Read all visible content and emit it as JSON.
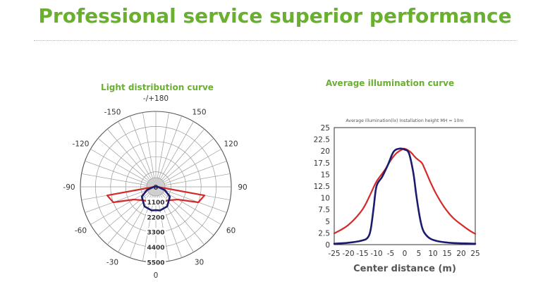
{
  "header": {
    "title": "Professional service superior performance"
  },
  "chart_data": [
    {
      "type": "polar",
      "title": "Light distribution curve",
      "angle_labels": [
        {
          "text": "-/+180",
          "deg": 180
        },
        {
          "text": "150",
          "deg": 150
        },
        {
          "text": "120",
          "deg": 120
        },
        {
          "text": "90",
          "deg": 90
        },
        {
          "text": "60",
          "deg": 60
        },
        {
          "text": "30",
          "deg": 30
        },
        {
          "text": "0",
          "deg": 0
        },
        {
          "text": "-30",
          "deg": -30
        },
        {
          "text": "-60",
          "deg": -60
        },
        {
          "text": "-90",
          "deg": -90
        },
        {
          "text": "-120",
          "deg": -120
        },
        {
          "text": "-150",
          "deg": -150
        }
      ],
      "radial_labels": [
        "1100",
        "2200",
        "3300",
        "4400",
        "5500"
      ],
      "center_label": "0",
      "rmax": 5500,
      "series": [
        {
          "color": "#d42a2a",
          "points": [
            [
              -90,
              120
            ],
            [
              -80,
              3600
            ],
            [
              -70,
              3300
            ],
            [
              -60,
              1850
            ],
            [
              -40,
              1300
            ],
            [
              0,
              1250
            ],
            [
              40,
              1300
            ],
            [
              60,
              1850
            ],
            [
              70,
              3300
            ],
            [
              80,
              3600
            ],
            [
              90,
              120
            ]
          ]
        },
        {
          "color": "#1c1c6e",
          "points": [
            [
              -90,
              150
            ],
            [
              -70,
              700
            ],
            [
              -55,
              1250
            ],
            [
              -30,
              1650
            ],
            [
              -10,
              1750
            ],
            [
              0,
              1700
            ],
            [
              10,
              1750
            ],
            [
              30,
              1650
            ],
            [
              55,
              1250
            ],
            [
              70,
              700
            ],
            [
              90,
              150
            ]
          ]
        }
      ]
    },
    {
      "type": "line",
      "title": "Average illumination curve",
      "annotation": "Average illumination(lx)    Installation height MH = 10m",
      "xlabel": "Center distance (m)",
      "xticks": [
        "-25",
        "-20",
        "-15",
        "-10",
        "-5",
        "0",
        "5",
        "10",
        "15",
        "20",
        "25"
      ],
      "yticks": [
        "25",
        "22.5",
        "20",
        "17.5",
        "15",
        "12.5",
        "10",
        "7.5",
        "5",
        "2.5",
        "0"
      ],
      "xlim": [
        -25,
        25
      ],
      "ylim": [
        0,
        25
      ],
      "series": [
        {
          "color": "#d42a2a",
          "points": [
            [
              -25,
              2.4
            ],
            [
              -20,
              4.2
            ],
            [
              -15,
              7.5
            ],
            [
              -12,
              11
            ],
            [
              -10,
              13.5
            ],
            [
              -7,
              16
            ],
            [
              -5,
              18
            ],
            [
              -3,
              19.5
            ],
            [
              -1,
              20.3
            ],
            [
              0,
              20.5
            ],
            [
              2,
              19.8
            ],
            [
              4,
              18.5
            ],
            [
              6,
              17.5
            ],
            [
              7,
              16.3
            ],
            [
              9,
              13.5
            ],
            [
              11,
              11
            ],
            [
              14,
              8
            ],
            [
              17,
              5.8
            ],
            [
              20,
              4.3
            ],
            [
              23,
              3
            ],
            [
              25,
              2.3
            ]
          ]
        },
        {
          "color": "#1c1c6e",
          "points": [
            [
              -25,
              0.2
            ],
            [
              -20,
              0.4
            ],
            [
              -15,
              0.9
            ],
            [
              -13,
              1.6
            ],
            [
              -12,
              3.5
            ],
            [
              -11,
              8
            ],
            [
              -10,
              12.5
            ],
            [
              -8,
              14.5
            ],
            [
              -6,
              17
            ],
            [
              -4,
              19.8
            ],
            [
              -2,
              20.5
            ],
            [
              0,
              20.3
            ],
            [
              1.5,
              19.5
            ],
            [
              3,
              15.5
            ],
            [
              4,
              11
            ],
            [
              5,
              7
            ],
            [
              6,
              4
            ],
            [
              7,
              2.5
            ],
            [
              9,
              1.3
            ],
            [
              12,
              0.7
            ],
            [
              17,
              0.35
            ],
            [
              25,
              0.2
            ]
          ]
        }
      ]
    }
  ]
}
